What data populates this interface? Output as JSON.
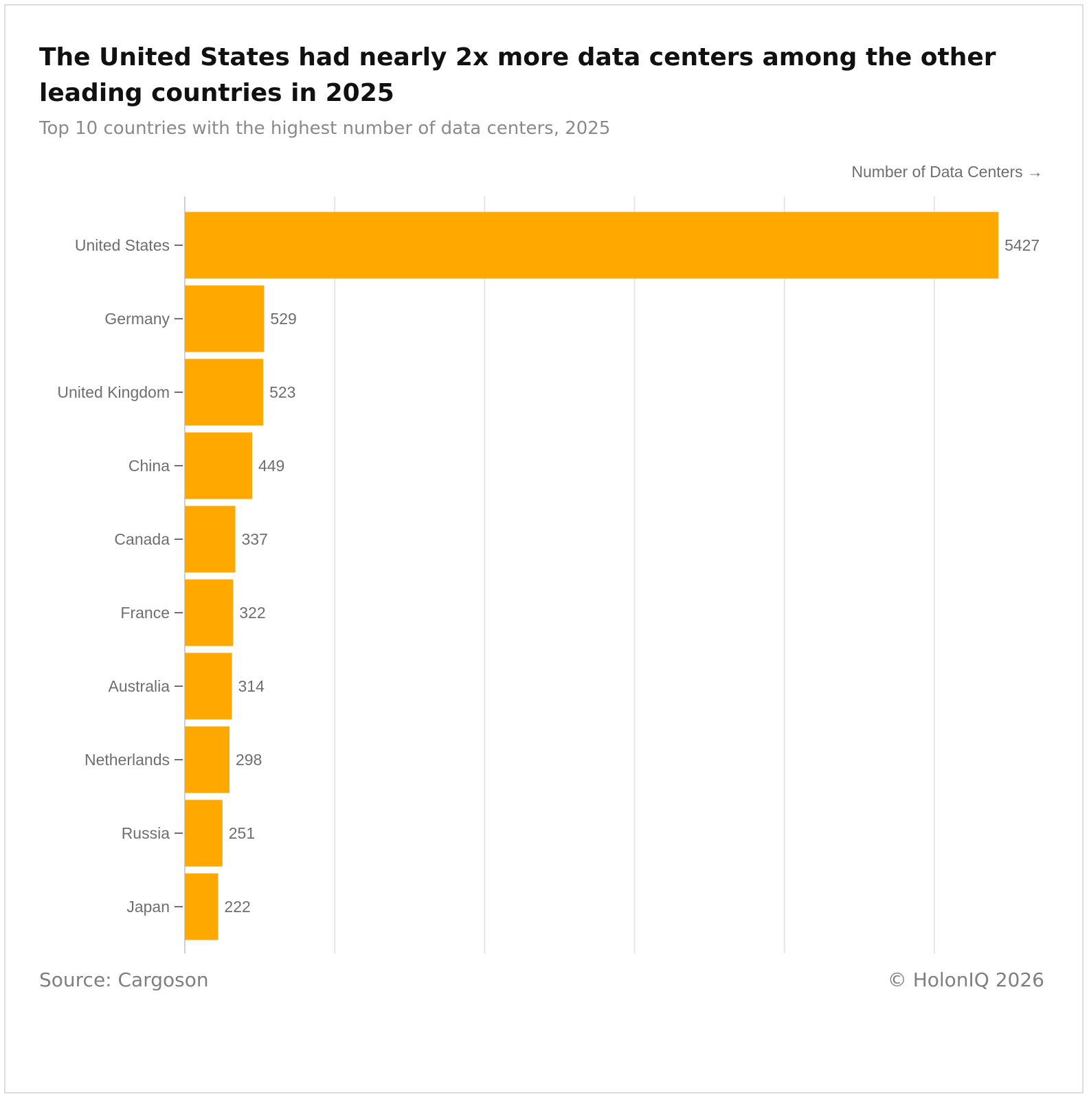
{
  "title": "The United States had nearly 2x more data centers among the other leading countries in 2025",
  "subtitle": "Top 10 countries with the highest number of data centers, 2025",
  "source": "Source: Cargoson",
  "copyright": "© HolonIQ 2026",
  "colors": {
    "bar": "#FFA800",
    "grid": "#e6e6e6",
    "axis": "#6e6e6e"
  },
  "chart_data": {
    "type": "bar",
    "orientation": "horizontal",
    "categories": [
      "United States",
      "Germany",
      "United Kingdom",
      "China",
      "Canada",
      "France",
      "Australia",
      "Netherlands",
      "Russia",
      "Japan"
    ],
    "values": [
      5427,
      529,
      523,
      449,
      337,
      322,
      314,
      298,
      251,
      222
    ],
    "xlabel": "Number of Data Centers →",
    "xlim": [
      0,
      5500
    ],
    "gridlines_at": [
      0,
      1000,
      2000,
      3000,
      4000,
      5000
    ],
    "grid": true,
    "x_tick_labels_shown": false
  }
}
